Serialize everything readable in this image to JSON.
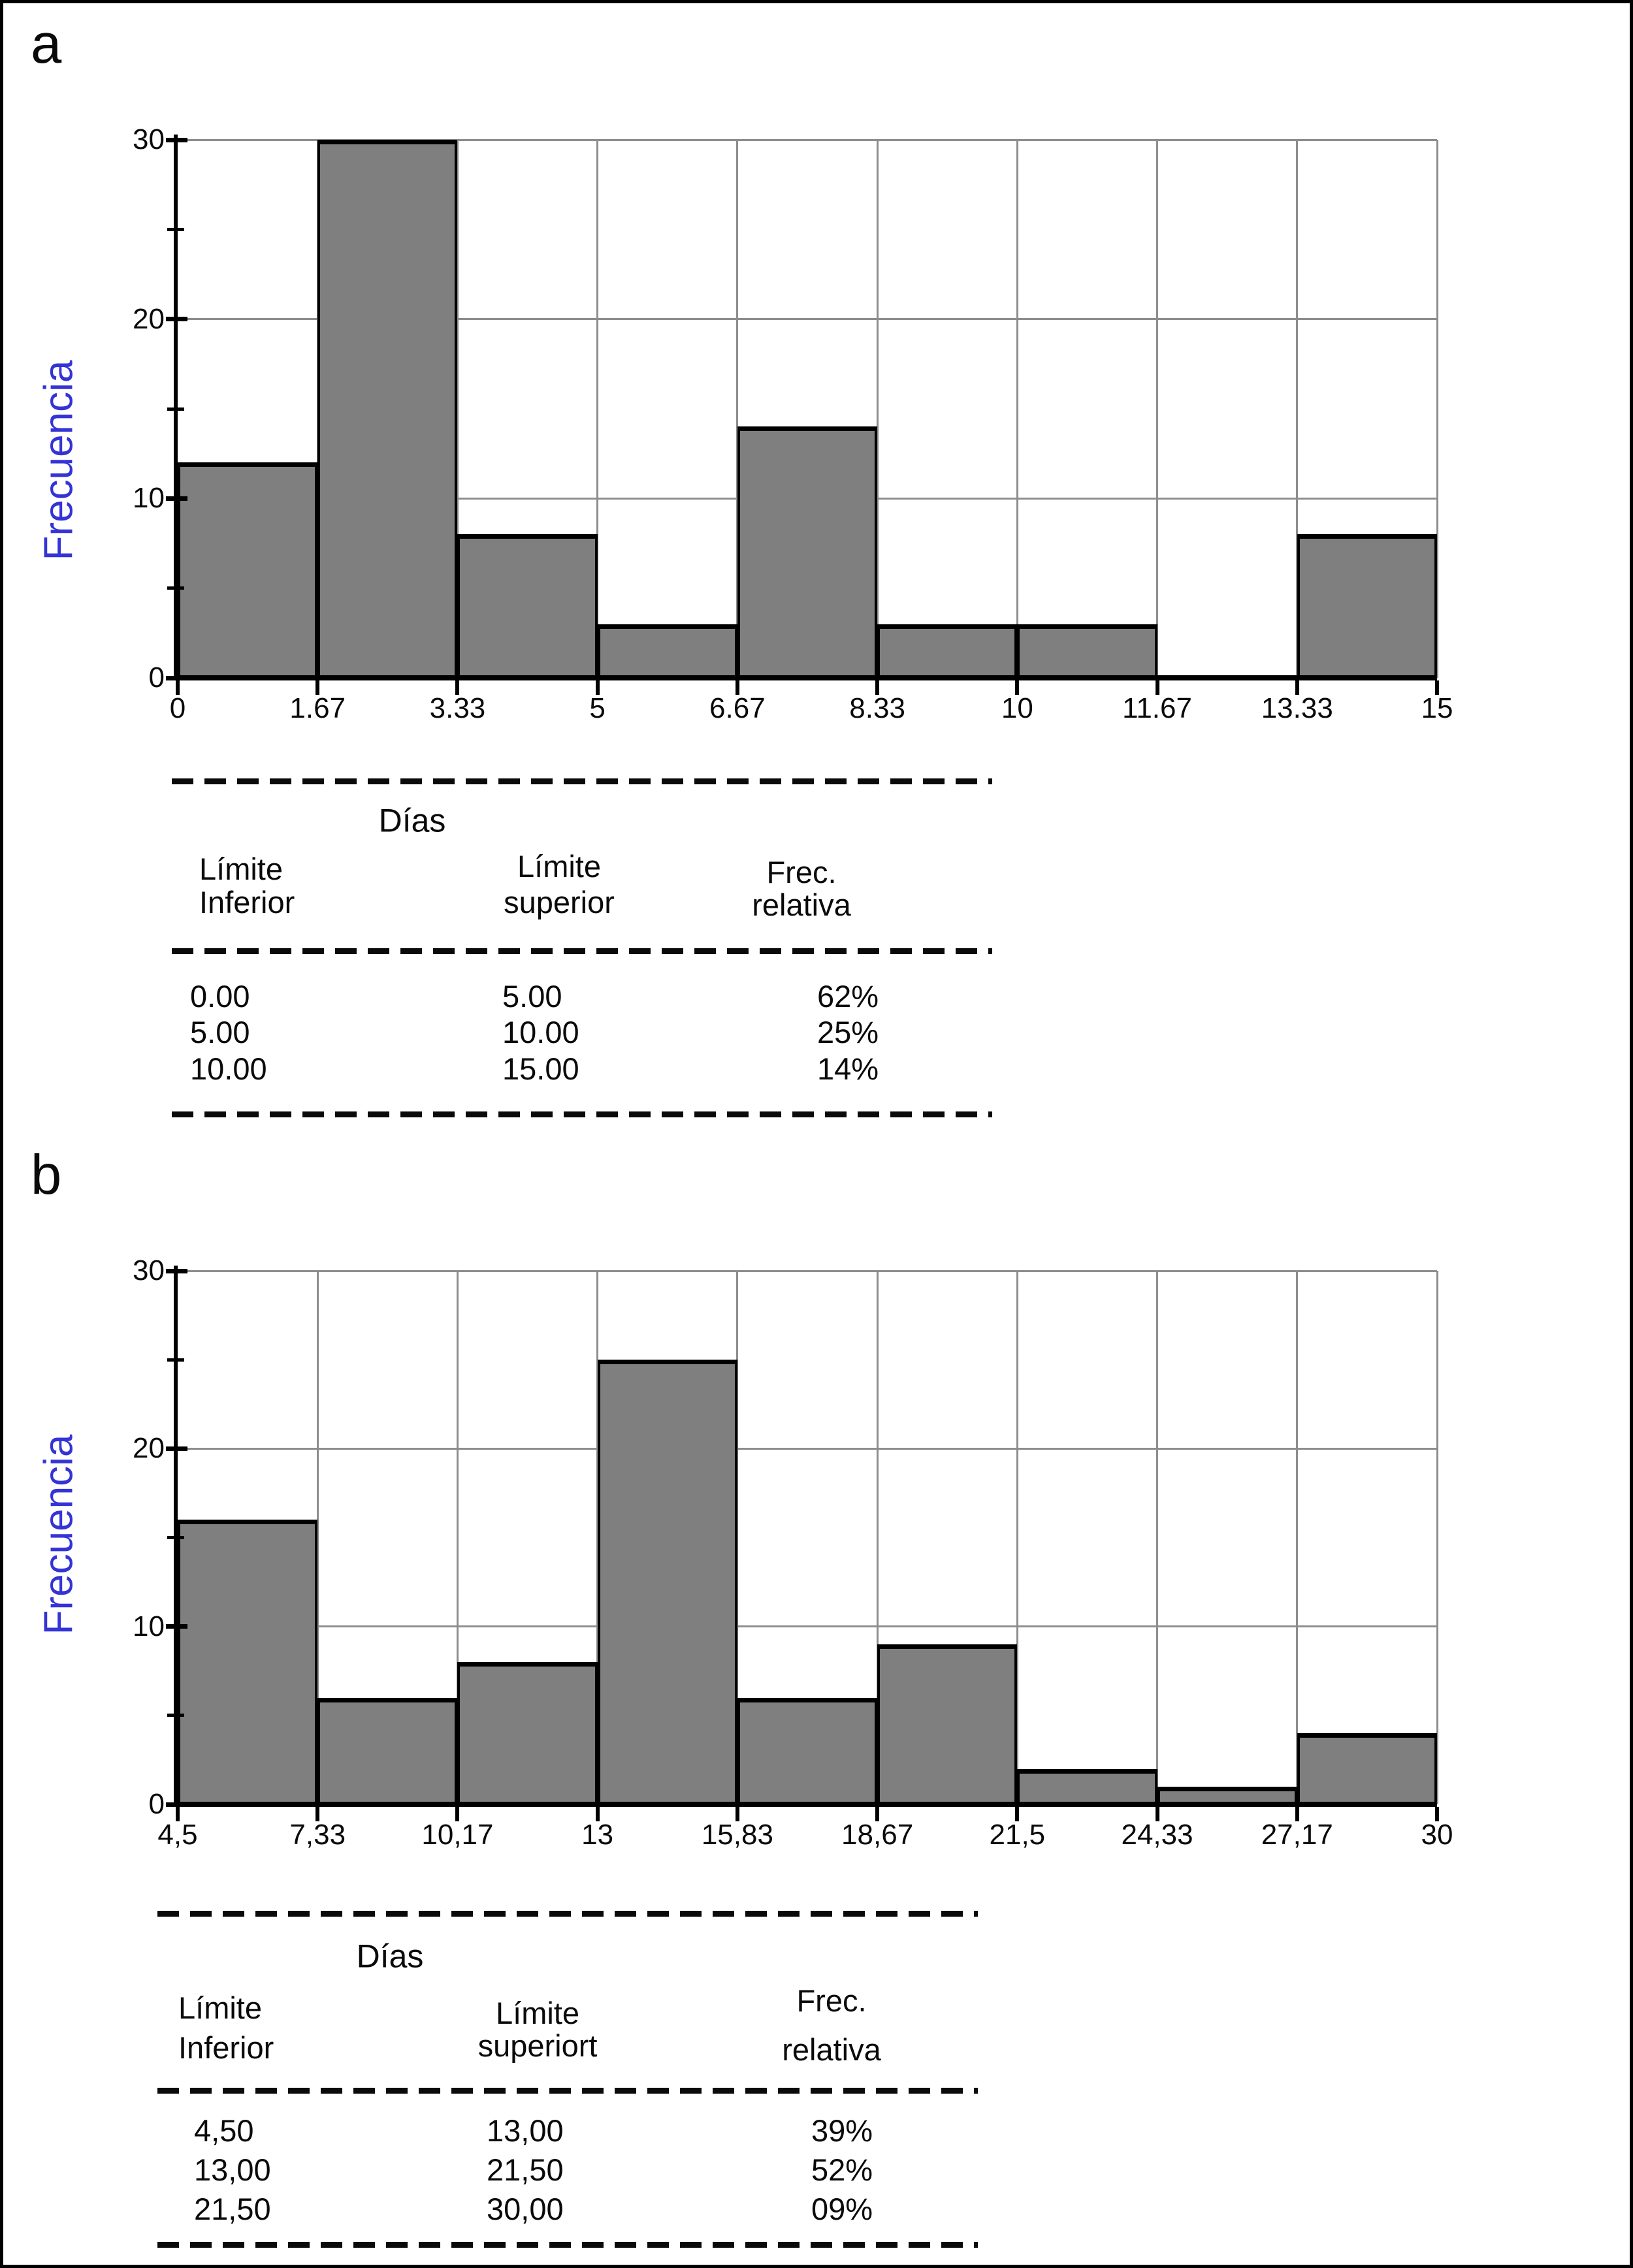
{
  "panels": [
    "a",
    "b"
  ],
  "colors": {
    "bar_fill": "#7f7f7f",
    "bar_border": "#000000",
    "grid_gray": "#8d8d8d",
    "axis_black": "#000000",
    "ylabel_blue": "#3434d6"
  },
  "chart_data": [
    {
      "id": "a",
      "type": "bar",
      "subtype": "histogram",
      "ylabel": "Frecuencia",
      "ylim": [
        0,
        30
      ],
      "y_ticks": [
        "0",
        "10",
        "20",
        "30"
      ],
      "y_minor_ticks": [
        5,
        15,
        25
      ],
      "grid": "on",
      "bin_edges": [
        0,
        1.67,
        3.33,
        5,
        6.67,
        8.33,
        10,
        11.67,
        13.33,
        15
      ],
      "x_tick_labels": [
        "0",
        "1.67",
        "3.33",
        "5",
        "6.67",
        "8.33",
        "10",
        "11.67",
        "13.33",
        "15"
      ],
      "values": [
        12,
        30,
        8,
        3,
        14,
        3,
        3,
        0,
        8
      ]
    },
    {
      "id": "b",
      "type": "bar",
      "subtype": "histogram",
      "ylabel": "Frecuencia",
      "ylim": [
        0,
        30
      ],
      "y_ticks": [
        "0",
        "10",
        "20",
        "30"
      ],
      "y_minor_ticks": [
        5,
        15,
        25
      ],
      "grid": "on",
      "bin_edges": [
        4.5,
        7.33,
        10.17,
        13,
        15.83,
        18.67,
        21.5,
        24.33,
        27.17,
        30
      ],
      "x_tick_labels": [
        "4,5",
        "7,33",
        "10,17",
        "13",
        "15,83",
        "18,67",
        "21,5",
        "24,33",
        "27,17",
        "30"
      ],
      "values": [
        16,
        6,
        8,
        25,
        6,
        9,
        2,
        1,
        4
      ]
    }
  ],
  "tables": [
    {
      "title": "Días",
      "col_headers": [
        [
          "Límite",
          "Inferior"
        ],
        [
          "Límite",
          "superior"
        ],
        [
          "Frec.",
          "relativa"
        ]
      ],
      "rows": [
        [
          "0.00",
          "5.00",
          "62%"
        ],
        [
          "5.00",
          "10.00",
          "25%"
        ],
        [
          "10.00",
          "15.00",
          "14%"
        ]
      ]
    },
    {
      "title": "Días",
      "col_headers": [
        [
          "Límite",
          "Inferior"
        ],
        [
          "Límite",
          "superiort"
        ],
        [
          "Frec.",
          "relativa"
        ]
      ],
      "rows": [
        [
          "4,50",
          "13,00",
          "39%"
        ],
        [
          "13,00",
          "21,50",
          "52%"
        ],
        [
          "21,50",
          "30,00",
          "09%"
        ]
      ]
    }
  ]
}
